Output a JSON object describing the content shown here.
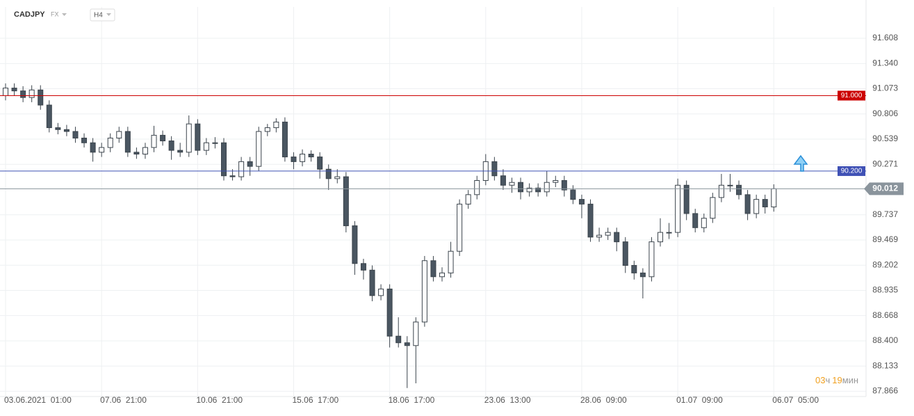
{
  "chart_data": {
    "type": "candlestick",
    "symbol": "CADJPY",
    "market": "FX",
    "timeframe": "H4",
    "categories": [
      "03.06.2021  01:00",
      null,
      null,
      null,
      null,
      null,
      null,
      null,
      null,
      null,
      null,
      "07.06  21:00",
      null,
      null,
      null,
      null,
      null,
      null,
      null,
      null,
      null,
      null,
      "10.06  21:00",
      null,
      null,
      null,
      null,
      null,
      null,
      null,
      null,
      null,
      null,
      "15.06  17:00",
      null,
      null,
      null,
      null,
      null,
      null,
      null,
      null,
      null,
      null,
      "18.06  17:00",
      null,
      null,
      null,
      null,
      null,
      null,
      null,
      null,
      null,
      null,
      "23.06  13:00",
      null,
      null,
      null,
      null,
      null,
      null,
      null,
      null,
      null,
      null,
      "28.06  09:00",
      null,
      null,
      null,
      null,
      null,
      null,
      null,
      null,
      null,
      null,
      "01.07  09:00",
      null,
      null,
      null,
      null,
      null,
      null,
      null,
      null,
      null,
      null,
      "06.07  05:00"
    ],
    "open": [
      91.0,
      91.08,
      91.05,
      90.98,
      91.06,
      90.9,
      90.66,
      90.64,
      90.62,
      90.55,
      90.5,
      90.4,
      90.45,
      90.55,
      90.62,
      90.4,
      90.38,
      90.45,
      90.58,
      90.52,
      90.42,
      90.4,
      90.7,
      90.42,
      90.5,
      90.5,
      90.15,
      90.14,
      90.3,
      90.25,
      90.62,
      90.66,
      90.72,
      90.35,
      90.3,
      90.38,
      90.35,
      90.22,
      90.12,
      90.14,
      89.62,
      89.22,
      89.15,
      88.88,
      88.95,
      88.45,
      88.38,
      88.35,
      88.6,
      89.25,
      89.08,
      89.12,
      89.35,
      89.85,
      89.95,
      90.1,
      90.3,
      90.15,
      90.05,
      90.08,
      89.98,
      90.02,
      89.98,
      90.08,
      90.1,
      90.0,
      89.9,
      89.85,
      89.5,
      89.52,
      89.55,
      89.45,
      89.2,
      89.12,
      89.08,
      89.45,
      89.55,
      89.55,
      90.05,
      89.75,
      89.6,
      89.7,
      89.92,
      90.05,
      90.05,
      89.95,
      89.75,
      89.9,
      89.82
    ],
    "high": [
      91.13,
      91.13,
      91.1,
      91.11,
      91.11,
      90.95,
      90.71,
      90.69,
      90.67,
      90.6,
      90.55,
      90.5,
      90.6,
      90.67,
      90.67,
      90.45,
      90.5,
      90.68,
      90.63,
      90.57,
      90.5,
      90.79,
      90.75,
      90.55,
      90.56,
      90.55,
      90.22,
      90.35,
      90.35,
      90.67,
      90.7,
      90.76,
      90.77,
      90.4,
      90.43,
      90.42,
      90.4,
      90.27,
      90.22,
      90.19,
      89.67,
      89.27,
      89.2,
      89.0,
      89.0,
      88.65,
      88.45,
      88.65,
      89.3,
      89.3,
      89.18,
      89.45,
      89.9,
      90.0,
      90.15,
      90.38,
      90.35,
      90.22,
      90.13,
      90.13,
      90.07,
      90.07,
      90.2,
      90.15,
      90.15,
      90.05,
      89.95,
      89.9,
      89.6,
      89.6,
      89.6,
      89.5,
      89.25,
      89.17,
      89.5,
      89.7,
      89.65,
      90.12,
      90.1,
      89.8,
      89.75,
      89.97,
      90.17,
      90.17,
      90.1,
      90.0,
      89.95,
      89.95,
      90.06
    ],
    "low": [
      90.95,
      91.0,
      90.93,
      90.93,
      90.85,
      90.61,
      90.59,
      90.57,
      90.5,
      90.45,
      90.3,
      90.35,
      90.4,
      90.5,
      90.35,
      90.33,
      90.33,
      90.4,
      90.47,
      90.32,
      90.35,
      90.35,
      90.37,
      90.37,
      90.44,
      90.1,
      90.1,
      90.1,
      90.15,
      90.2,
      90.57,
      90.61,
      90.3,
      90.22,
      90.25,
      90.3,
      90.12,
      90.0,
      90.07,
      89.55,
      89.1,
      89.05,
      88.82,
      88.83,
      88.33,
      88.33,
      87.9,
      87.95,
      88.55,
      89.03,
      89.03,
      89.07,
      89.3,
      89.8,
      89.9,
      90.05,
      90.1,
      90.0,
      89.97,
      89.9,
      89.93,
      89.93,
      89.93,
      90.03,
      89.93,
      89.85,
      89.7,
      89.45,
      89.45,
      89.47,
      89.35,
      89.12,
      89.05,
      88.85,
      89.03,
      89.4,
      89.48,
      89.5,
      89.68,
      89.55,
      89.55,
      89.65,
      89.87,
      89.98,
      89.9,
      89.68,
      89.7,
      89.75,
      89.77
    ],
    "close": [
      91.08,
      91.05,
      90.98,
      91.06,
      90.9,
      90.66,
      90.64,
      90.62,
      90.55,
      90.5,
      90.4,
      90.45,
      90.55,
      90.62,
      90.4,
      90.38,
      90.45,
      90.58,
      90.52,
      90.42,
      90.4,
      90.7,
      90.42,
      90.5,
      90.5,
      90.15,
      90.14,
      90.3,
      90.25,
      90.62,
      90.66,
      90.72,
      90.35,
      90.3,
      90.38,
      90.35,
      90.22,
      90.12,
      90.14,
      89.62,
      89.22,
      89.15,
      88.88,
      88.95,
      88.45,
      88.38,
      88.35,
      88.6,
      89.25,
      89.08,
      89.12,
      89.35,
      89.85,
      89.95,
      90.1,
      90.3,
      90.15,
      90.05,
      90.08,
      89.98,
      90.02,
      89.98,
      90.08,
      90.1,
      90.0,
      89.9,
      89.85,
      89.5,
      89.52,
      89.55,
      89.45,
      89.2,
      89.12,
      89.08,
      89.45,
      89.55,
      89.55,
      90.05,
      89.75,
      89.6,
      89.7,
      89.92,
      90.05,
      90.05,
      89.95,
      89.75,
      89.9,
      89.82,
      90.012
    ],
    "up_color": "#ffffff",
    "down_color": "#4a5661",
    "wick_color": "#3b444c",
    "ylim": [
      87.81,
      91.94
    ],
    "yticks": [
      91.608,
      {
        "value": 91.34,
        "label": "91.340"
      },
      91.073,
      90.806,
      90.539,
      90.271,
      89.737,
      89.469,
      89.202,
      88.935,
      88.668,
      {
        "value": 88.4,
        "label": "88.400"
      },
      88.133,
      87.866
    ],
    "grid": true,
    "levels": [
      {
        "value": 91.0,
        "label": "91.000",
        "color": "#cc0000"
      },
      {
        "value": 90.2,
        "label": "90.200",
        "color": "#3f51b5"
      }
    ],
    "countdown": {
      "hours": "03",
      "hours_unit": "ч",
      "minutes": "19",
      "minutes_unit": "мин"
    }
  }
}
